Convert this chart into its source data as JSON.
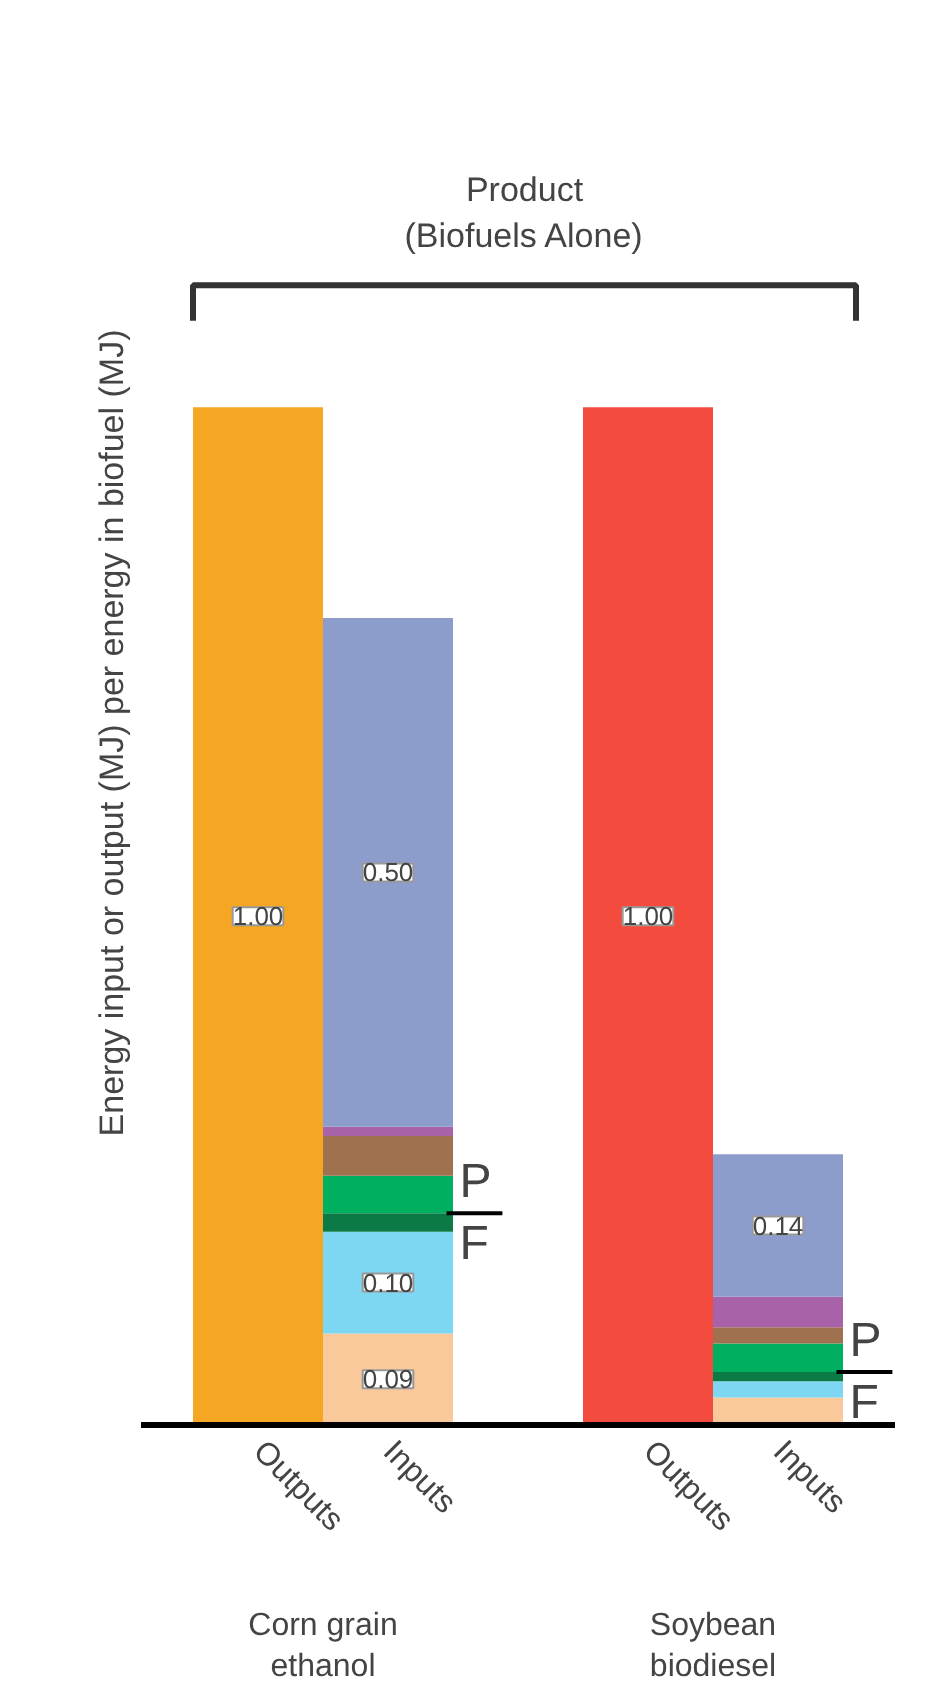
{
  "chart_data": {
    "type": "bar",
    "stacked": true,
    "grid": false,
    "ylabel": "Energy input or output (MJ) per energy in biofuel (MJ)",
    "categories": [
      "Outputs",
      "Inputs",
      "Outputs",
      "Inputs"
    ],
    "series": [
      {
        "color": "#f5a623",
        "values": [
          1.0,
          null,
          null,
          null
        ],
        "value_labels": [
          "1.00",
          null,
          null,
          null
        ]
      },
      {
        "color": "#f44b3f",
        "values": [
          null,
          null,
          1.0,
          null
        ],
        "value_labels": [
          null,
          null,
          "1.00",
          null
        ]
      },
      {
        "color": "#f9c89b",
        "values": [
          null,
          0.09,
          null,
          0.027
        ],
        "value_labels": [
          null,
          "0.09",
          null,
          null
        ]
      },
      {
        "color": "#7dd6f2",
        "values": [
          null,
          0.1,
          null,
          0.016
        ],
        "value_labels": [
          null,
          "0.10",
          null,
          null
        ]
      },
      {
        "color": "#0b7a45",
        "values": [
          null,
          0.018,
          null,
          0.009
        ]
      },
      {
        "color": "#00b060",
        "values": [
          null,
          0.037,
          null,
          0.028
        ]
      },
      {
        "color": "#a0714f",
        "values": [
          null,
          0.039,
          null,
          0.016
        ]
      },
      {
        "color": "#a862a8",
        "values": [
          null,
          0.009,
          null,
          0.03
        ]
      },
      {
        "color": "#8c9dcb",
        "values": [
          null,
          0.5,
          null,
          0.14
        ],
        "value_labels": [
          null,
          "0.50",
          null,
          "0.14"
        ]
      }
    ],
    "annotations": [
      "Product\n(Biofuels Alone)",
      "Corn grain\nethanol",
      "Soybean\nbiodiesel",
      "P",
      "F",
      "P",
      "F"
    ]
  }
}
